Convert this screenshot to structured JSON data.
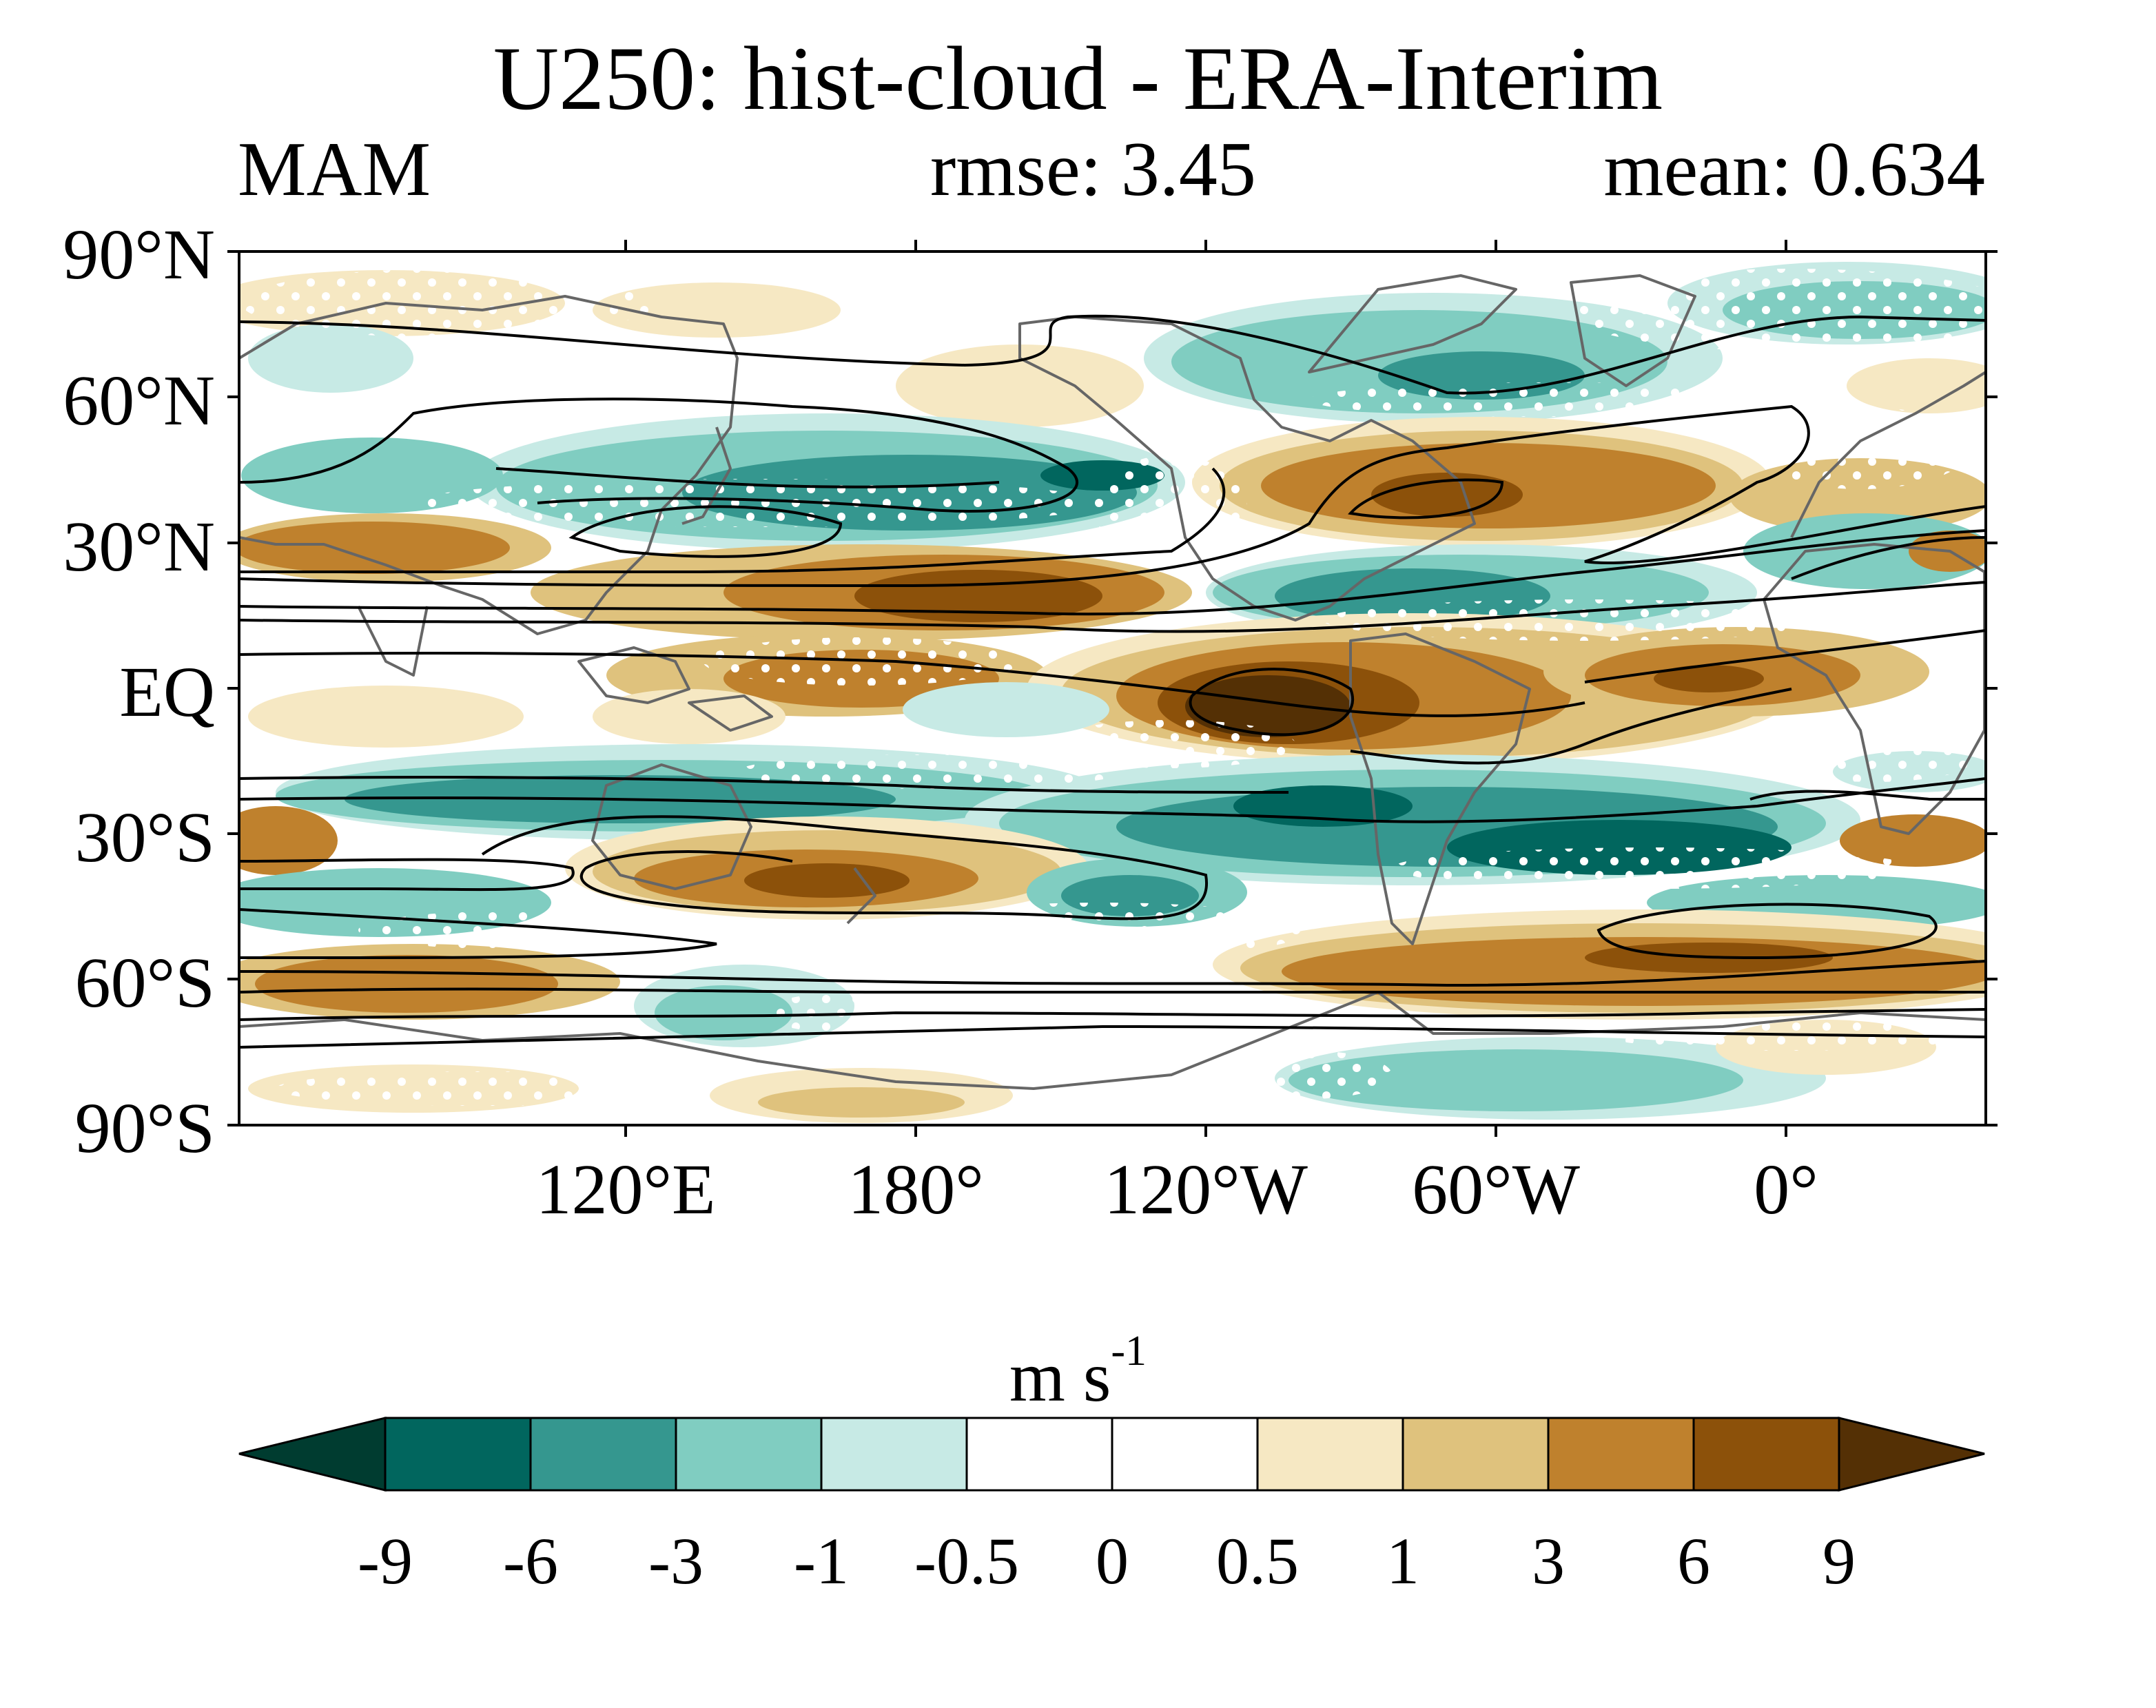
{
  "header": {
    "title": "U250: hist-cloud - ERA-Interim",
    "season": "MAM",
    "rmse": "rmse: 3.45",
    "mean": "mean: 0.634"
  },
  "axes": {
    "y_ticks": [
      {
        "label": "90°N",
        "lat": 90
      },
      {
        "label": "60°N",
        "lat": 60
      },
      {
        "label": "30°N",
        "lat": 30
      },
      {
        "label": "EQ",
        "lat": 0
      },
      {
        "label": "30°S",
        "lat": -30
      },
      {
        "label": "60°S",
        "lat": -60
      },
      {
        "label": "90°S",
        "lat": -90
      }
    ],
    "x_ticks": [
      {
        "label": "120°E",
        "lon": 120
      },
      {
        "label": "180°",
        "lon": 180
      },
      {
        "label": "120°W",
        "lon": 240
      },
      {
        "label": "60°W",
        "lon": 300
      },
      {
        "label": "0°",
        "lon": 360
      }
    ],
    "lon_range": [
      40,
      402
    ],
    "lat_range": [
      -90,
      90
    ]
  },
  "colorbar": {
    "units": "m s",
    "units_exp": "-1",
    "labels": [
      "-9",
      "-6",
      "-3",
      "-1",
      "-0.5",
      "0",
      "0.5",
      "1",
      "3",
      "6",
      "9"
    ],
    "colors": [
      "#003c30",
      "#01665e",
      "#35978f",
      "#80cdc1",
      "#c7eae5",
      "#ffffff",
      "#ffffff",
      "#f6e8c3",
      "#dfc27d",
      "#bf812d",
      "#8c510a",
      "#543005"
    ]
  }
}
